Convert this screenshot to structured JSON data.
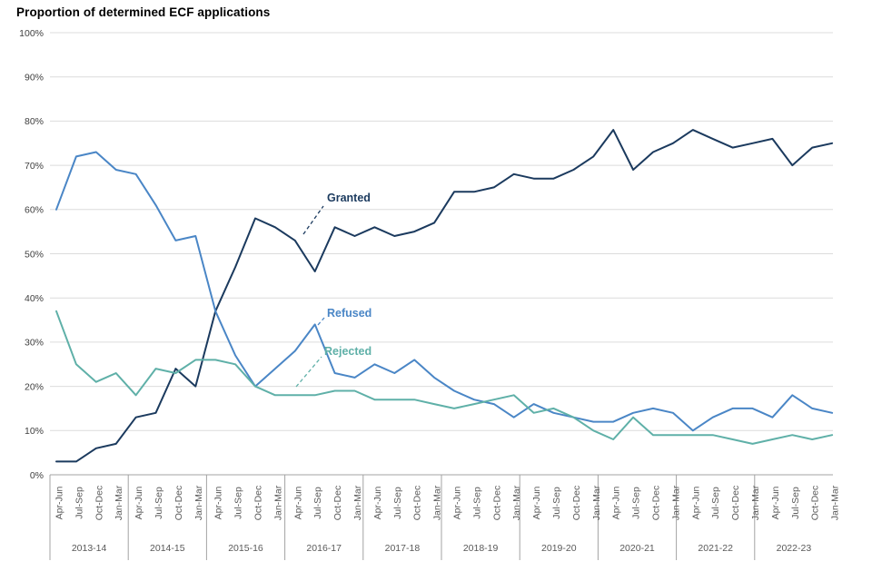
{
  "chart_data": {
    "type": "line",
    "title": "Proportion of determined ECF applications",
    "xlabel": "",
    "ylabel": "",
    "ylim": [
      0,
      100
    ],
    "y_tick_step": 10,
    "y_tick_labels": [
      "0%",
      "10%",
      "20%",
      "30%",
      "40%",
      "50%",
      "60%",
      "70%",
      "80%",
      "90%",
      "100%"
    ],
    "grid": "horizontal-only",
    "legend_position": "inline-annotations-on-lines",
    "quarter_labels": [
      "Apr-Jun",
      "Jul-Sep",
      "Oct-Dec",
      "Jan-Mar"
    ],
    "years": [
      "2013-14",
      "2014-15",
      "2015-16",
      "2016-17",
      "2017-18",
      "2018-19",
      "2019-20",
      "2020-21",
      "2021-22",
      "2022-23"
    ],
    "series": [
      {
        "name": "Granted",
        "color": "#1b3a5e",
        "values": [
          3,
          3,
          6,
          7,
          13,
          14,
          24,
          20,
          37,
          47,
          58,
          56,
          53,
          46,
          56,
          54,
          56,
          54,
          55,
          57,
          64,
          64,
          65,
          68,
          67,
          67,
          69,
          72,
          78,
          69,
          73,
          75,
          78,
          76,
          74,
          75,
          76,
          70,
          74,
          75
        ]
      },
      {
        "name": "Refused",
        "color": "#4a86c6",
        "values": [
          60,
          72,
          73,
          69,
          68,
          61,
          53,
          54,
          37,
          27,
          20,
          24,
          28,
          34,
          23,
          22,
          25,
          23,
          26,
          22,
          19,
          17,
          16,
          13,
          16,
          14,
          13,
          12,
          12,
          14,
          15,
          14,
          10,
          13,
          15,
          15,
          13,
          18,
          15,
          14
        ]
      },
      {
        "name": "Rejected",
        "color": "#5fb0a8",
        "values": [
          37,
          25,
          21,
          23,
          18,
          24,
          23,
          26,
          26,
          25,
          20,
          18,
          18,
          18,
          19,
          19,
          17,
          17,
          17,
          16,
          15,
          16,
          17,
          18,
          14,
          15,
          13,
          10,
          8,
          13,
          9,
          9,
          9,
          9,
          8,
          7,
          8,
          9,
          8,
          9
        ]
      }
    ],
    "colors": {
      "gridline": "#dcdcdc",
      "axis_and_separators": "#a3a3a3",
      "y_tick_label": "#404040",
      "x_tick_label": "#595959",
      "title": "#000000"
    }
  }
}
